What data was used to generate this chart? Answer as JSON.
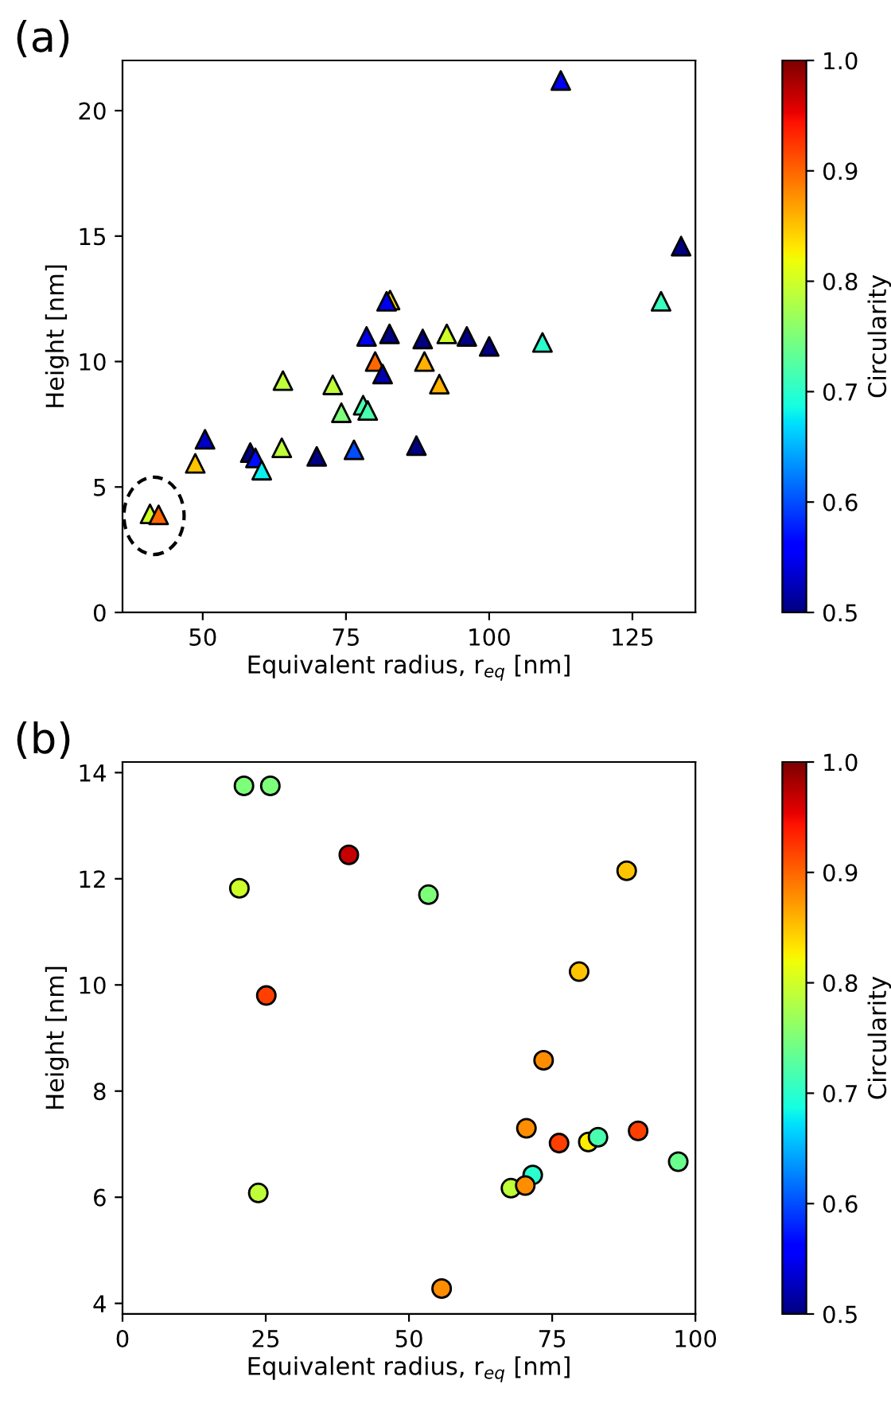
{
  "chart_data": [
    {
      "type": "scatter",
      "title": "(a)",
      "xlabel": "Equivalent radius, r$_{eq}$ [nm]",
      "ylabel": "Height [nm]",
      "clabel": "Circularity",
      "marker": "triangle",
      "x": [
        112.5,
        109.3,
        130,
        133.5,
        100,
        96.1,
        92.6,
        88.4,
        88.7,
        91.3,
        87.3,
        82.7,
        82.1,
        82.6,
        78.6,
        80.1,
        81.4,
        78,
        78.8,
        74.2,
        72.7,
        64,
        63.8,
        76.4,
        69.9,
        58.3,
        59.2,
        60.3,
        50.4,
        48.7,
        40.8,
        42.3
      ],
      "values": [
        21.2,
        10.76,
        12.4,
        14.6,
        10.6,
        11.0,
        11.1,
        10.9,
        10.0,
        9.1,
        6.65,
        12.45,
        12.4,
        11.1,
        11.0,
        10.0,
        9.5,
        8.26,
        8.05,
        7.96,
        9.07,
        9.24,
        6.56,
        6.48,
        6.22,
        6.37,
        6.16,
        5.67,
        6.9,
        5.94,
        3.93,
        3.89
      ],
      "cvalues": [
        0.55,
        0.7,
        0.71,
        0.5,
        0.5,
        0.5,
        0.8,
        0.5,
        0.86,
        0.86,
        0.5,
        0.84,
        0.55,
        0.5,
        0.55,
        0.9,
        0.52,
        0.72,
        0.72,
        0.75,
        0.79,
        0.79,
        0.79,
        0.6,
        0.5,
        0.5,
        0.57,
        0.68,
        0.53,
        0.85,
        0.8,
        0.9
      ],
      "xlim": [
        36,
        136
      ],
      "xticks": [
        50,
        75,
        100,
        125
      ],
      "ylim": [
        0,
        22
      ],
      "yticks": [
        0,
        5,
        10,
        15,
        20
      ],
      "clim": [
        0.5,
        1.0
      ],
      "cticks": [
        0.5,
        0.6,
        0.7,
        0.8,
        0.9,
        {
          "value": 1,
          "label": "1.0"
        }
      ],
      "grid": false,
      "legend": false
    },
    {
      "type": "scatter",
      "title": "(b)",
      "xlabel": "Equivalent radius, r$_{eq}$ [nm]",
      "ylabel": "Height [nm]",
      "clabel": "Circularity",
      "marker": "circle",
      "x": [
        21.2,
        25.8,
        39.5,
        20.4,
        53.4,
        25.1,
        79.7,
        73.5,
        70.5,
        76.2,
        81.3,
        71.6,
        67.8,
        70.3,
        23.7,
        55.7,
        83,
        88,
        90,
        97
      ],
      "values": [
        13.75,
        13.75,
        12.45,
        11.82,
        11.7,
        9.8,
        10.25,
        8.58,
        7.3,
        7.02,
        7.04,
        6.42,
        6.17,
        6.22,
        6.08,
        4.28,
        7.13,
        12.15,
        7.25,
        6.67
      ],
      "cvalues": [
        0.75,
        0.75,
        0.97,
        0.8,
        0.75,
        0.92,
        0.85,
        0.88,
        0.88,
        0.92,
        0.83,
        0.7,
        0.79,
        0.88,
        0.79,
        0.88,
        0.72,
        0.85,
        0.92,
        0.74
      ],
      "xlim": [
        0,
        100
      ],
      "xticks": [
        0,
        25,
        50,
        75,
        100
      ],
      "ylim": [
        3.8,
        14.2
      ],
      "yticks": [
        4,
        6,
        8,
        10,
        12,
        14
      ],
      "clim": [
        0.5,
        1.0
      ],
      "cticks": [
        0.5,
        0.6,
        0.7,
        0.8,
        0.9,
        {
          "value": 1,
          "label": "1.0"
        }
      ],
      "grid": false,
      "legend": false
    }
  ]
}
